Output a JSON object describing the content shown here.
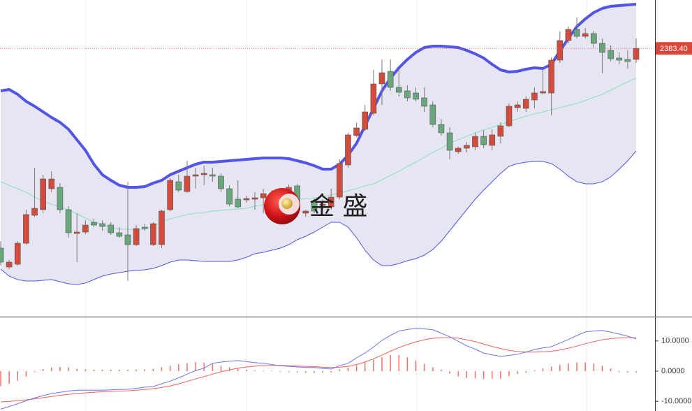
{
  "chart_data": [
    {
      "type": "candlestick",
      "open": [
        2240.5,
        2227,
        2229,
        2244,
        2264,
        2268,
        2283,
        2284,
        2268,
        2251,
        2252,
        2259,
        2258,
        2257,
        2251.5,
        2250,
        2243,
        2255.5,
        2243,
        2243,
        2268,
        2288,
        2281,
        2292,
        2293,
        2293,
        2292,
        2283,
        2275.5,
        2275,
        2275.5,
        2276.5,
        2278,
        2268,
        2277,
        2285,
        2265.5,
        2274,
        2271,
        2270,
        2277,
        2300,
        2321,
        2325.5,
        2337,
        2358,
        2367,
        2355.5,
        2353,
        2351.5,
        2348,
        2343,
        2329,
        2323,
        2309.5,
        2312,
        2313,
        2320.5,
        2314,
        2320.5,
        2328,
        2341,
        2340.5,
        2346.5,
        2351.5,
        2351.5,
        2375,
        2389,
        2397,
        2392,
        2394,
        2387,
        2382,
        2376.5,
        2375.5,
        2375.5
      ],
      "high": [
        2245.5,
        2232,
        2245.5,
        2268,
        2298,
        2293,
        2295.5,
        2287,
        2270.5,
        2265.5,
        2260.5,
        2261.5,
        2260.5,
        2259,
        2255.5,
        2288,
        2257,
        2258,
        2259,
        2268,
        2290.5,
        2293,
        2303,
        2298,
        2299.5,
        2298,
        2294,
        2285.5,
        2289,
        2278,
        2280.5,
        2283,
        2282,
        2279,
        2286,
        2286.5,
        2268,
        2276,
        2275.5,
        2283,
        2304,
        2323,
        2330.5,
        2343,
        2368,
        2375.5,
        2375.5,
        2368,
        2357,
        2355.5,
        2355.5,
        2345.5,
        2333,
        2327,
        2313,
        2316.5,
        2323,
        2325,
        2325.5,
        2330.5,
        2344,
        2345.5,
        2349,
        2355.5,
        2368,
        2377,
        2395.5,
        2399,
        2405.5,
        2398,
        2396,
        2390.5,
        2385.5,
        2380.5,
        2382,
        2390.5
      ],
      "low": [
        2228,
        2225.5,
        2228,
        2243,
        2263,
        2265.5,
        2280.5,
        2265.5,
        2248,
        2230.5,
        2250.5,
        2255.5,
        2253,
        2250,
        2248,
        2217,
        2242,
        2253,
        2242,
        2240.5,
        2267,
        2280.5,
        2280,
        2283,
        2285.5,
        2288,
        2280.5,
        2270.5,
        2269,
        2273,
        2268,
        2265.5,
        2268,
        2265.5,
        2275.5,
        2265.5,
        2263,
        2265.5,
        2268,
        2268,
        2275.5,
        2298,
        2320,
        2324.5,
        2335.5,
        2343,
        2353,
        2349,
        2345.5,
        2345.5,
        2338,
        2327,
        2321,
        2304,
        2308,
        2309,
        2310.5,
        2312,
        2310.5,
        2315.5,
        2327,
        2338,
        2338,
        2340.5,
        2350.5,
        2335.5,
        2373,
        2387,
        2390.5,
        2390.5,
        2384,
        2365.5,
        2374,
        2372,
        2369,
        2373
      ],
      "close": [
        2230.5,
        2230.5,
        2244,
        2264.5,
        2269,
        2290,
        2290,
        2268,
        2251.5,
        2252,
        2257,
        2257,
        2256,
        2251.5,
        2249,
        2243,
        2254.5,
        2254.5,
        2258,
        2267,
        2289,
        2282,
        2292,
        2293,
        2294,
        2292,
        2283,
        2272,
        2270,
        2276,
        2276.5,
        2279.5,
        2270.5,
        2277,
        2284,
        2268,
        2267,
        2267,
        2272,
        2277,
        2301,
        2321.5,
        2326.5,
        2338,
        2358,
        2366,
        2355.5,
        2352,
        2348,
        2347,
        2342,
        2329,
        2323,
        2310.5,
        2312,
        2314,
        2320.5,
        2314.5,
        2321.5,
        2328,
        2342,
        2343,
        2347,
        2351.5,
        2352.5,
        2375,
        2389,
        2397,
        2392,
        2394,
        2387,
        2380.5,
        2376,
        2375,
        2374,
        2383.4
      ],
      "upper_band": [
        2353,
        2354,
        2350.5,
        2345.5,
        2342,
        2338,
        2334,
        2330.5,
        2325.5,
        2318,
        2310.5,
        2300.5,
        2293,
        2289,
        2285.5,
        2284,
        2284,
        2284.5,
        2287,
        2289,
        2293,
        2295.5,
        2298,
        2300.5,
        2302,
        2302,
        2302.5,
        2303,
        2303.5,
        2304,
        2304.5,
        2305,
        2305,
        2305,
        2304.5,
        2303,
        2301.5,
        2299.5,
        2297,
        2297,
        2300.5,
        2307,
        2315.5,
        2328,
        2340.5,
        2353,
        2362,
        2369.5,
        2375.5,
        2380.5,
        2384,
        2385,
        2385,
        2384.5,
        2384,
        2382,
        2379.5,
        2376.5,
        2372,
        2368,
        2366.5,
        2367,
        2368.5,
        2369.5,
        2369,
        2372,
        2381.5,
        2390.5,
        2399,
        2404.5,
        2409,
        2412,
        2413.5,
        2414,
        2414.5,
        2415
      ],
      "middle_band": [
        2288,
        2285.5,
        2283,
        2280.5,
        2277,
        2274,
        2272,
        2270,
        2268,
        2265,
        2262,
        2259,
        2257.5,
        2255.5,
        2254,
        2254,
        2254,
        2254,
        2256.5,
        2259,
        2261.5,
        2263,
        2264.5,
        2265.5,
        2266,
        2267,
        2267.5,
        2268,
        2268.5,
        2269,
        2270.5,
        2271.5,
        2273,
        2274,
        2274.5,
        2275.5,
        2276,
        2276.5,
        2277.5,
        2278.5,
        2280,
        2281.5,
        2283,
        2285,
        2286.5,
        2289.5,
        2292.5,
        2295.5,
        2299,
        2302,
        2305.5,
        2309,
        2312,
        2315.5,
        2318,
        2320.5,
        2323,
        2325,
        2327,
        2329,
        2331,
        2333,
        2335,
        2336.5,
        2338,
        2339.5,
        2341,
        2342.5,
        2344,
        2346,
        2348.5,
        2350.5,
        2353.5,
        2356.5,
        2359.5,
        2362
      ],
      "lower_band": [
        2225.5,
        2220.5,
        2218,
        2217,
        2217,
        2217.5,
        2218,
        2216.5,
        2215,
        2214.5,
        2215.5,
        2218,
        2220.5,
        2222,
        2223,
        2224,
        2224.5,
        2225,
        2226,
        2228,
        2230.5,
        2232,
        2232,
        2231.5,
        2231,
        2231,
        2231,
        2231,
        2232,
        2234,
        2236.5,
        2237.5,
        2239,
        2240.5,
        2243,
        2246.5,
        2249,
        2252,
        2255.5,
        2259,
        2259,
        2255.5,
        2248,
        2239,
        2232,
        2228,
        2228,
        2229.5,
        2231.5,
        2233,
        2235.5,
        2239.5,
        2245.5,
        2253,
        2260.5,
        2268,
        2275.5,
        2282,
        2288,
        2294,
        2299,
        2301,
        2302,
        2302.5,
        2302.5,
        2301,
        2297,
        2292,
        2288,
        2286.5,
        2286.5,
        2288,
        2291.5,
        2297,
        2303,
        2310
      ],
      "up_color": "#d24b3c",
      "down_color": "#6aa67c",
      "band_color": "#5454e6",
      "middle_color": "#8fdcc8",
      "band_fill": "#e6e6f3",
      "ylim": [
        2191.5,
        2418
      ],
      "last_price": {
        "value": 2383.4,
        "label": "2383.40"
      },
      "watermark": "金 盛"
    },
    {
      "type": "macd",
      "macd": [
        -12.6,
        -11.7,
        -10.8,
        -9.8,
        -8.9,
        -8.1,
        -7.4,
        -7.0,
        -6.6,
        -6.3,
        -6.3,
        -6.3,
        -6.3,
        -6.2,
        -6.1,
        -6.0,
        -5.7,
        -5.3,
        -5.1,
        -4.2,
        -3.3,
        -2.2,
        -1.0,
        0.2,
        1.0,
        2.6,
        3.0,
        3.3,
        3.5,
        3.2,
        2.8,
        2.6,
        2.2,
        1.8,
        1.6,
        1.4,
        1.2,
        1.2,
        0.9,
        0.7,
        1.8,
        2.6,
        4.4,
        6.0,
        8.0,
        10.2,
        11.8,
        13.3,
        13.8,
        14.2,
        14.0,
        13.7,
        12.6,
        11.4,
        9.9,
        8.4,
        7.3,
        6.0,
        5.4,
        4.9,
        5.2,
        5.6,
        6.3,
        7.2,
        7.7,
        8.1,
        9.3,
        10.5,
        11.8,
        13.0,
        13.3,
        13.5,
        12.9,
        12.3,
        11.6,
        10.7
      ],
      "signal": [
        -10.2,
        -10.0,
        -9.8,
        -9.5,
        -9.2,
        -8.8,
        -8.4,
        -8.0,
        -7.7,
        -7.4,
        -7.2,
        -7.0,
        -6.8,
        -6.7,
        -6.6,
        -6.5,
        -6.3,
        -6.1,
        -5.8,
        -5.4,
        -4.9,
        -4.2,
        -3.4,
        -2.6,
        -1.8,
        -1.0,
        -0.2,
        0.4,
        1.0,
        1.4,
        1.7,
        1.8,
        1.9,
        1.9,
        1.8,
        1.7,
        1.6,
        1.5,
        1.3,
        1.2,
        1.3,
        1.6,
        2.2,
        3.0,
        4.1,
        5.3,
        6.6,
        7.8,
        8.8,
        9.7,
        10.4,
        10.9,
        11.1,
        11.1,
        10.9,
        10.4,
        9.8,
        9.0,
        8.2,
        7.5,
        6.9,
        6.5,
        6.3,
        6.3,
        6.4,
        6.6,
        7.0,
        7.6,
        8.3,
        9.1,
        9.8,
        10.4,
        10.8,
        11.0,
        11.1,
        11.1
      ],
      "histogram": [
        -5.0,
        -4.2,
        -3.2,
        -1.8,
        -0.3,
        0.7,
        1.2,
        1.4,
        1.3,
        0.8,
        0.6,
        0.5,
        0.5,
        0.5,
        0.5,
        0.5,
        0.5,
        0.6,
        0.8,
        1.3,
        1.8,
        2.3,
        2.7,
        3.0,
        2.8,
        2.4,
        1.8,
        1.3,
        0.8,
        0.5,
        0.3,
        0.2,
        0.2,
        -0.2,
        -0.3,
        -0.4,
        -0.6,
        -0.6,
        -0.5,
        -0.4,
        0.6,
        1.2,
        2.0,
        2.9,
        3.8,
        4.6,
        5.3,
        5.4,
        4.6,
        3.5,
        2.4,
        1.3,
        0.5,
        -0.8,
        -1.8,
        -2.3,
        -2.4,
        -2.6,
        -2.5,
        -2.5,
        -1.7,
        -0.9,
        -0.5,
        0.3,
        0.9,
        1.5,
        2.1,
        2.6,
        2.9,
        2.9,
        2.6,
        1.8,
        0.9,
        -0.3,
        -0.4,
        -0.4
      ],
      "macd_color": "#6f72ee",
      "signal_color": "#f0605a",
      "histogram_color": "#f07068",
      "ylim": [
        -13.2,
        17.6
      ],
      "yticks": [
        {
          "value": 10,
          "label": "10.0000"
        },
        {
          "value": 0,
          "label": "0.0000"
        },
        {
          "value": -10,
          "label": "-10.0000"
        }
      ]
    }
  ]
}
